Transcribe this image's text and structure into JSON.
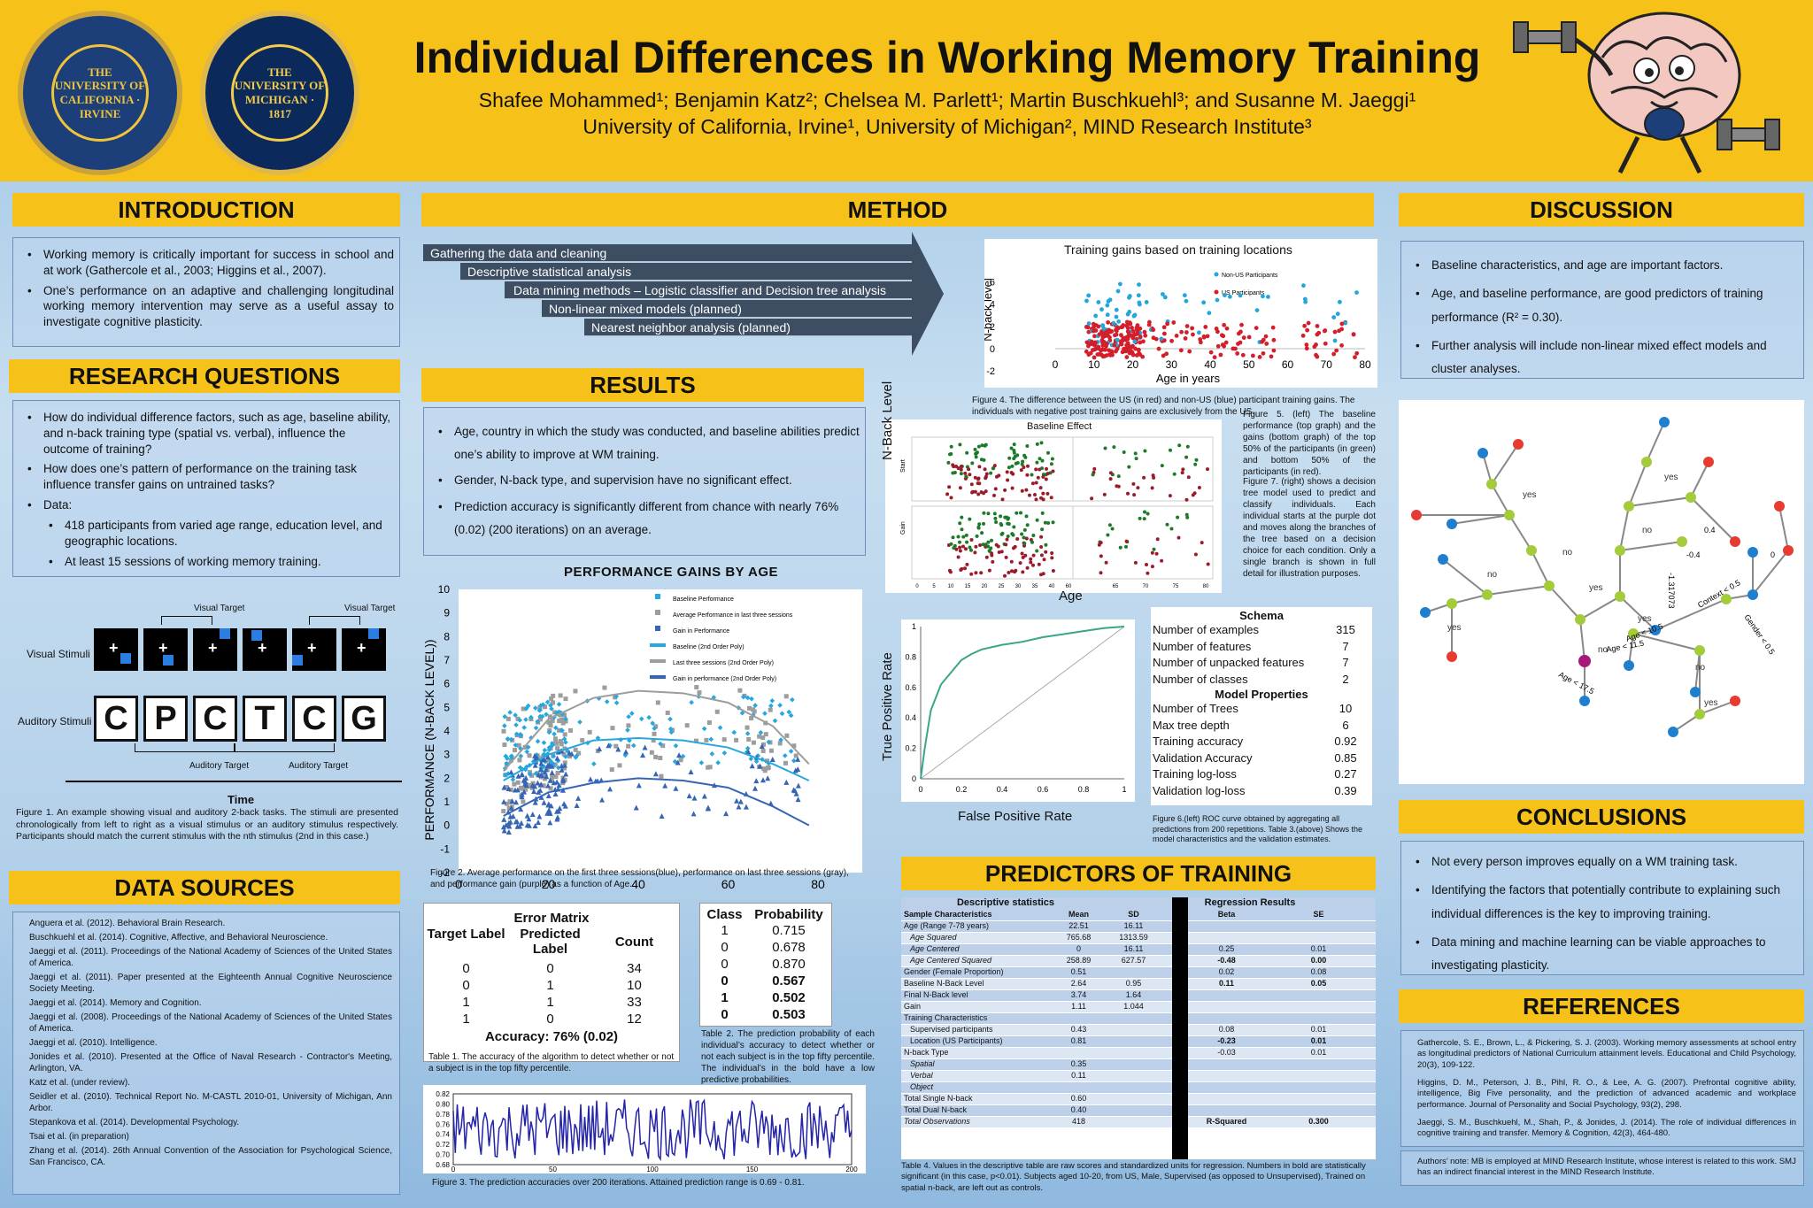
{
  "header": {
    "title": "Individual Differences in Working Memory Training",
    "authors": "Shafee Mohammed¹; Benjamin Katz²; Chelsea M. Parlett¹; Martin Buschkuehl³; and Susanne M. Jaeggi¹",
    "affiliations": "University of California, Irvine¹, University of Michigan², MIND Research Institute³",
    "uci_seal": "THE UNIVERSITY OF CALIFORNIA · IRVINE",
    "umich_seal": "THE UNIVERSITY OF MICHIGAN · 1817"
  },
  "intro": {
    "heading": "INTRODUCTION",
    "items": [
      "Working memory is critically important for success in school and at work (Gathercole et al., 2003; Higgins et al., 2007).",
      "One’s performance on an adaptive and challenging longitudinal working memory intervention may serve as a useful assay to investigate cognitive plasticity."
    ]
  },
  "rq": {
    "heading": "RESEARCH QUESTIONS",
    "items": [
      "How do individual difference factors, such as age, baseline ability, and n-back training type (spatial vs. verbal), influence the outcome of training?",
      "How does one’s pattern of performance on the training task influence transfer gains on untrained tasks?",
      "Data:"
    ],
    "sub": [
      "418 participants from varied age range, education level, and geographic locations.",
      "At least 15 sessions of working memory training."
    ]
  },
  "fig1": {
    "visual_target": "Visual Target",
    "auditory_target": "Auditory Target",
    "visual_label": "Visual Stimuli",
    "auditory_label": "Auditory Stimuli",
    "letters": [
      "C",
      "P",
      "C",
      "T",
      "C",
      "G"
    ],
    "plus": "+",
    "time": "Time",
    "caption": "Figure 1. An example showing visual and auditory 2-back tasks. The stimuli are presented chronologically from left to right as a visual stimulus or an auditory stimulus respectively. Participants should match the current stimulus with the nth stimulus (2nd in this case.)"
  },
  "sources": {
    "heading": "DATA SOURCES",
    "items": [
      "Anguera et al. (2012). Behavioral Brain Research.",
      "Buschkuehl et al. (2014). Cognitive, Affective, and Behavioral Neuroscience.",
      "Jaeggi et al. (2011). Proceedings of the National Academy of Sciences of the United States of America.",
      "Jaeggi et al. (2011). Paper presented at the Eighteenth Annual Cognitive Neuroscience Society Meeting.",
      "Jaeggi et al. (2014). Memory and Cognition.",
      "Jaeggi et al. (2008). Proceedings of the National Academy of Sciences of the United States of America.",
      "Jaeggi et al. (2010). Intelligence.",
      "Jonides et al. (2010). Presented at the Office of Naval Research - Contractor's Meeting, Arlington, VA.",
      "Katz et al. (under review).",
      "Seidler et al. (2010). Technical Report No. M-CASTL 2010-01, University of Michigan, Ann Arbor.",
      "Stepankova et al. (2014). Developmental Psychology.",
      "Tsai et al. (in preparation)",
      "Zhang et al. (2014). 26th Annual Convention of the Association for Psychological Science, San Francisco, CA."
    ]
  },
  "method": {
    "heading": "METHOD",
    "steps": [
      "Gathering the data and cleaning",
      "Descriptive statistical analysis",
      "Data mining methods – Logistic classifier and Decision tree analysis",
      "Non-linear mixed models (planned)",
      "Nearest neighbor analysis (planned)"
    ]
  },
  "results": {
    "heading": "RESULTS",
    "items": [
      "Age, country in which the study was conducted, and baseline abilities predict one’s ability to improve at WM training.",
      "Gender, N-back type, and supervision have no significant effect.",
      "Prediction accuracy is significantly different from chance with nearly 76% (0.02) (200 iterations) on an average."
    ]
  },
  "fig2": {
    "title": "PERFORMANCE GAINS BY AGE",
    "ylabel": "PERFORMANCE (N-BACK LEVEL))",
    "xlabel": "AGE (IN YEARS)",
    "yticks": [
      "10",
      "9",
      "8",
      "7",
      "6",
      "5",
      "4",
      "3",
      "2",
      "1",
      "0",
      "-1",
      "-2"
    ],
    "xticks": [
      "0",
      "20",
      "40",
      "60",
      "80"
    ],
    "legend": [
      "Baseline Performance",
      "Average Performance in last three sessions",
      "Gain in Performance",
      "Baseline (2nd Order Poly)",
      "Last three sessions (2nd Order Poly)",
      "Gain in performance (2nd Order Poly)"
    ],
    "caption": "Figure 2. Average performance on the first three sessions(blue), performance on last three sessions (gray), and performance gain (purple) as a function of Age."
  },
  "confusion": {
    "title": "Error Matrix",
    "h1": "Target Label",
    "h2": "Predicted Label",
    "h3": "Count",
    "rows": [
      [
        "0",
        "0",
        "34"
      ],
      [
        "0",
        "1",
        "10"
      ],
      [
        "1",
        "1",
        "33"
      ],
      [
        "1",
        "0",
        "12"
      ]
    ],
    "accuracy": "Accuracy: 76% (0.02)",
    "caption": "Table 1. The accuracy of the algorithm to detect whether or not a subject is in the top fifty percentile."
  },
  "probs": {
    "h1": "Class",
    "h2": "Probability",
    "rows": [
      [
        "1",
        "0.715"
      ],
      [
        "0",
        "0.678"
      ],
      [
        "0",
        "0.870"
      ],
      [
        "0",
        "0.567"
      ],
      [
        "1",
        "0.502"
      ],
      [
        "0",
        "0.503"
      ]
    ],
    "caption": "Table 2. The prediction probability of each individual’s accuracy to detect whether or not each subject is in the top fifty percentile. The individual’s in the bold have a low predictive probabilities."
  },
  "fig3": {
    "yticks": [
      "0.82",
      "0.80",
      "0.78",
      "0.76",
      "0.74",
      "0.72",
      "0.70",
      "0.68"
    ],
    "xticks": [
      "0",
      "50",
      "100",
      "150",
      "200"
    ],
    "caption": "Figure 3. The prediction accuracies over 200 iterations. Attained prediction range is 0.69 - 0.81."
  },
  "fig4": {
    "title": "Training gains based on training locations",
    "ylabel": "N-back level",
    "xlabel": "Age in years",
    "legend": [
      "Non-US Participants",
      "US Participants"
    ],
    "yticks": [
      "6",
      "4",
      "2",
      "0",
      "-2"
    ],
    "xticks": [
      "0",
      "10",
      "20",
      "30",
      "40",
      "50",
      "60",
      "70",
      "80"
    ],
    "caption": "Figure 4. The difference between the US (in red) and non-US (blue) participant training gains. The individuals with negative post training gains are exclusively from the US."
  },
  "fig5": {
    "title": "Baseline Effect",
    "ylabel": "N-Back Level",
    "xlabel": "Age",
    "p1": "Start",
    "p2": "Gain",
    "xticks": [
      "0",
      "5",
      "10",
      "15",
      "20",
      "25",
      "30",
      "35",
      "40",
      "60",
      "65",
      "70",
      "75",
      "80"
    ]
  },
  "fig5cap": "Figure 5. (left) The baseline performance (top graph) and the gains (bottom graph) of the top 50% of the participants (in green) and bottom 50% of the participants (in red).",
  "fig7cap": "Figure 7. (right) shows a decision tree model used to predict and classify individuals. Each individual starts at the purple dot and moves along the branches of the tree based on a decision choice for each condition. Only a single branch is shown in full detail for illustration purposes.",
  "roc": {
    "ylabel": "True Positive Rate",
    "xlabel": "False Positive Rate",
    "xticks": [
      "0",
      "0.2",
      "0.4",
      "0.6",
      "0.8",
      "1"
    ],
    "yticks": [
      "1",
      "0.8",
      "0.6",
      "0.4",
      "0.2",
      "0"
    ],
    "caption": "Figure 6.(left) ROC curve obtained by aggregating all predictions from 200 repetitions. Table 3.(above) Shows the model characteristics and the validation estimates."
  },
  "schema": {
    "h1": "Schema",
    "rows1": [
      [
        "Number of examples",
        "315"
      ],
      [
        "Number of features",
        "7"
      ],
      [
        "Number of unpacked features",
        "7"
      ],
      [
        "Number of classes",
        "2"
      ]
    ],
    "h2": "Model Properties",
    "rows2": [
      [
        "Number of Trees",
        "10"
      ],
      [
        "Max tree depth",
        "6"
      ],
      [
        "Training accuracy",
        "0.92"
      ],
      [
        "Validation Accuracy",
        "0.85"
      ],
      [
        "Training log-loss",
        "0.27"
      ],
      [
        "Validation log-loss",
        "0.39"
      ]
    ]
  },
  "predictors": {
    "heading": "PREDICTORS OF TRAINING",
    "desc": "Descriptive statistics",
    "reg": "Regression Results",
    "cols": [
      "Sample Characteristics",
      "Mean",
      "SD",
      "Beta",
      "SE"
    ],
    "rows": [
      [
        "Age (Range 7-78 years)",
        "22.51",
        "16.11",
        "",
        ""
      ],
      [
        "Age Squared",
        "765.68",
        "1313.59",
        "",
        ""
      ],
      [
        "Age Centered",
        "0",
        "16.11",
        "0.25",
        "0.01"
      ],
      [
        "Age Centered Squared",
        "258.89",
        "627.57",
        "-0.48",
        "0.00"
      ],
      [
        "Gender (Female Proportion)",
        "0.51",
        "",
        "0.02",
        "0.08"
      ],
      [
        "Baseline N-Back Level",
        "2.64",
        "0.95",
        "0.11",
        "0.05"
      ],
      [
        "Final N-Back level",
        "3.74",
        "1.64",
        "",
        ""
      ],
      [
        "Gain",
        "1.11",
        "1.044",
        "",
        ""
      ],
      [
        "Training Characteristics",
        "",
        "",
        "",
        ""
      ],
      [
        "Supervised participants",
        "0.43",
        "",
        "0.08",
        "0.01"
      ],
      [
        "Location (US Participants)",
        "0.81",
        "",
        "-0.23",
        "0.01"
      ],
      [
        "N-back Type",
        "",
        "",
        "-0.03",
        "0.01"
      ],
      [
        "Spatial",
        "0.35",
        "",
        "",
        ""
      ],
      [
        "Verbal",
        "0.11",
        "",
        "",
        ""
      ],
      [
        "Object",
        "",
        "",
        "",
        ""
      ],
      [
        "Total Single N-back",
        "0.60",
        "",
        "",
        ""
      ],
      [
        "Total Dual N-back",
        "0.40",
        "",
        "",
        ""
      ],
      [
        "Total Observations",
        "418",
        "",
        "R-Squared",
        "0.300"
      ]
    ],
    "caption": "Table 4. Values in the descriptive table are raw scores and standardized units for regression. Numbers in bold are statistically significant (in this case, p<0.01). Subjects aged 10-20, from US, Male, Supervised (as opposed to Unsupervised), Trained on spatial n-back, are left out as controls."
  },
  "discussion": {
    "heading": "DISCUSSION",
    "items": [
      "Baseline characteristics, and age are important factors.",
      "Age, and baseline performance, are good predictors of training performance (R² = 0.30).",
      "Further analysis will include non-linear mixed effect models and cluster analyses."
    ]
  },
  "tree": {
    "labels": [
      "yes",
      "no",
      "yes",
      "no",
      "yes",
      "no",
      "yes",
      "no",
      "yes",
      "no",
      "yes",
      "no",
      "yes",
      "no",
      "yes",
      "no"
    ],
    "cond": [
      "Age < 17.5",
      "Age < 11.5",
      "Context < 0.5",
      "Gender < 0.5",
      "-1.317073",
      "Age < 10.5",
      "0.4",
      "-0.4",
      "0"
    ]
  },
  "conclusions": {
    "heading": "CONCLUSIONS",
    "items": [
      "Not every person improves equally on a WM training task.",
      "Identifying the factors that potentially contribute to explaining such individual differences is the key to improving training.",
      "Data mining and machine learning can be viable approaches to investigating plasticity."
    ]
  },
  "references": {
    "heading": "REFERENCES",
    "items": [
      "Gathercole, S. E., Brown, L., & Pickering, S. J. (2003). Working memory assessments at school entry as longitudinal predictors of National Curriculum attainment levels. Educational and Child Psychology, 20(3), 109-122.",
      "Higgins, D. M., Peterson, J. B., Pihl, R. O., & Lee, A. G. (2007). Prefrontal cognitive ability, intelligence, Big Five personality, and the prediction of advanced academic and workplace performance. Journal of Personality and Social Psychology, 93(2), 298.",
      "Jaeggi, S. M., Buschkuehl, M., Shah, P., & Jonides, J. (2014). The role of individual differences in cognitive training and transfer. Memory & Cognition, 42(3), 464-480."
    ],
    "note": "Authors’ note: MB is employed at MIND Research Institute, whose interest is related to this work. SMJ has an indirect financial interest in the MIND Research Institute."
  },
  "chart_data": [
    {
      "type": "scatter",
      "title": "PERFORMANCE GAINS BY AGE",
      "xlabel": "AGE (IN YEARS)",
      "ylabel": "PERFORMANCE (N-BACK LEVEL))",
      "xlim": [
        0,
        80
      ],
      "ylim": [
        -2,
        10
      ],
      "series": [
        {
          "name": "Baseline Performance",
          "trend": [
            [
              10,
              1.9
            ],
            [
              20,
              3.0
            ],
            [
              30,
              3.6
            ],
            [
              40,
              3.7
            ],
            [
              50,
              3.6
            ],
            [
              60,
              3.3
            ],
            [
              70,
              2.6
            ],
            [
              78,
              1.9
            ]
          ]
        },
        {
          "name": "Average Performance in last three sessions",
          "trend": [
            [
              10,
              2.3
            ],
            [
              20,
              4.5
            ],
            [
              30,
              5.4
            ],
            [
              40,
              5.7
            ],
            [
              50,
              5.6
            ],
            [
              60,
              5.2
            ],
            [
              70,
              4.2
            ],
            [
              78,
              2.6
            ]
          ]
        },
        {
          "name": "Gain in Performance",
          "trend": [
            [
              10,
              0.4
            ],
            [
              20,
              1.4
            ],
            [
              30,
              1.8
            ],
            [
              40,
              2.0
            ],
            [
              50,
              1.9
            ],
            [
              60,
              1.6
            ],
            [
              70,
              0.8
            ],
            [
              78,
              0.0
            ]
          ]
        }
      ]
    },
    {
      "type": "line",
      "xlim": [
        0,
        200
      ],
      "ylim": [
        0.68,
        0.82
      ],
      "range": [
        0.69,
        0.81
      ]
    },
    {
      "type": "scatter",
      "title": "Training gains based on training locations",
      "xlabel": "Age in years",
      "ylabel": "N-back level",
      "xlim": [
        0,
        80
      ],
      "ylim": [
        -2,
        6
      ],
      "series": [
        {
          "name": "Non-US Participants"
        },
        {
          "name": "US Participants"
        }
      ]
    },
    {
      "type": "line",
      "xlabel": "False Positive Rate",
      "ylabel": "True Positive Rate",
      "x": [
        0,
        0.02,
        0.05,
        0.1,
        0.15,
        0.2,
        0.25,
        0.3,
        0.4,
        0.5,
        0.6,
        0.7,
        0.8,
        0.9,
        1
      ],
      "y": [
        0,
        0.2,
        0.45,
        0.62,
        0.7,
        0.78,
        0.82,
        0.85,
        0.88,
        0.9,
        0.93,
        0.95,
        0.97,
        0.99,
        1
      ]
    }
  ],
  "colors": {
    "header": "#f6c21a",
    "arrow": "#3d4d62",
    "us": "#d21f2b",
    "nonus": "#22a6dc",
    "baseline": "#26a7de",
    "last": "#9d9d9d",
    "gain": "#3565b5"
  }
}
